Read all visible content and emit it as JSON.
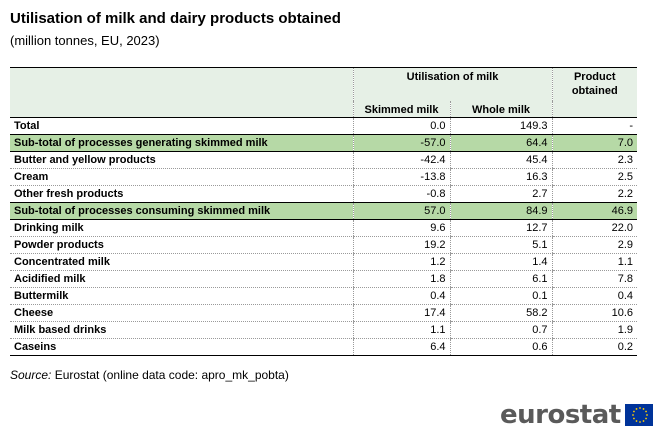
{
  "title": "Utilisation of milk and dairy products obtained",
  "subtitle": "(million tonnes, EU, 2023)",
  "table": {
    "group_header": "Utilisation of milk",
    "product_header": "Product obtained",
    "col_skimmed": "Skimmed milk",
    "col_whole": "Whole milk",
    "rows": [
      {
        "label": "Total",
        "skimmed": "0.0",
        "whole": "149.3",
        "product": "-",
        "kind": "total"
      },
      {
        "label": "Sub-total of processes generating skimmed milk",
        "skimmed": "-57.0",
        "whole": "64.4",
        "product": "7.0",
        "kind": "sub"
      },
      {
        "label": "Butter and yellow products",
        "skimmed": "-42.4",
        "whole": "45.4",
        "product": "2.3",
        "kind": "row"
      },
      {
        "label": "Cream",
        "skimmed": "-13.8",
        "whole": "16.3",
        "product": "2.5",
        "kind": "row"
      },
      {
        "label": "Other fresh products",
        "skimmed": "-0.8",
        "whole": "2.7",
        "product": "2.2",
        "kind": "row"
      },
      {
        "label": "Sub-total of processes consuming skimmed milk",
        "skimmed": "57.0",
        "whole": "84.9",
        "product": "46.9",
        "kind": "sub"
      },
      {
        "label": "Drinking milk",
        "skimmed": "9.6",
        "whole": "12.7",
        "product": "22.0",
        "kind": "row"
      },
      {
        "label": "Powder products",
        "skimmed": "19.2",
        "whole": "5.1",
        "product": "2.9",
        "kind": "row"
      },
      {
        "label": "Concentrated milk",
        "skimmed": "1.2",
        "whole": "1.4",
        "product": "1.1",
        "kind": "row"
      },
      {
        "label": "Acidified milk",
        "skimmed": "1.8",
        "whole": "6.1",
        "product": "7.8",
        "kind": "row"
      },
      {
        "label": "Buttermilk",
        "skimmed": "0.4",
        "whole": "0.1",
        "product": "0.4",
        "kind": "row"
      },
      {
        "label": "Cheese",
        "skimmed": "17.4",
        "whole": "58.2",
        "product": "10.6",
        "kind": "row"
      },
      {
        "label": "Milk based drinks",
        "skimmed": "1.1",
        "whole": "0.7",
        "product": "1.9",
        "kind": "row"
      },
      {
        "label": "Caseins",
        "skimmed": "6.4",
        "whole": "0.6",
        "product": "0.2",
        "kind": "last"
      }
    ]
  },
  "source": {
    "label": "Source:",
    "text": "Eurostat (online data code: apro_mk_pobta)"
  },
  "logo": {
    "text": "eurostat",
    "flag_color": "#003399",
    "star_color": "#ffcc00"
  },
  "colors": {
    "header_bg": "#e6f0e6",
    "subtotal_bg": "#b6d9a6"
  }
}
